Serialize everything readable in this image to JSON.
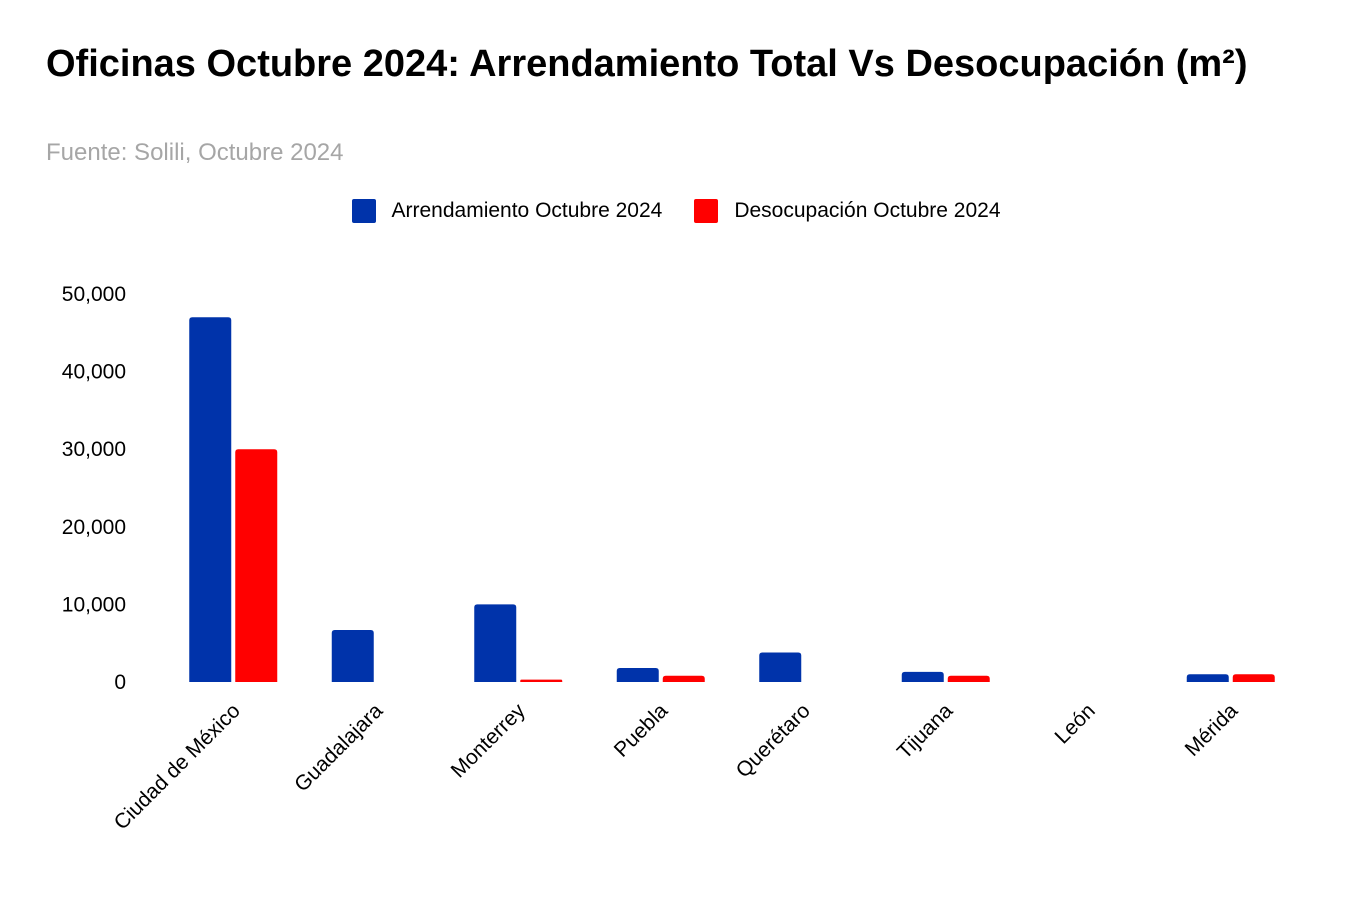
{
  "chart_data": {
    "type": "bar",
    "title": "Oficinas Octubre 2024: Arrendamiento Total Vs Desocupación (m²)",
    "subtitle": "Fuente: Solili, Octubre 2024",
    "xlabel": "",
    "ylabel": "",
    "categories": [
      "Ciudad de México",
      "Guadalajara",
      "Monterrey",
      "Puebla",
      "Querétaro",
      "Tijuana",
      "León",
      "Mérida"
    ],
    "series": [
      {
        "name": "Arrendamiento Octubre 2024",
        "color": "#0033aa",
        "values": [
          47000,
          6700,
          10000,
          1800,
          3800,
          1300,
          0,
          1000
        ]
      },
      {
        "name": "Desocupación Octubre 2024",
        "color": "#ff0000",
        "values": [
          30000,
          0,
          300,
          800,
          0,
          800,
          0,
          1000
        ]
      }
    ],
    "ylim": [
      0,
      50000
    ],
    "yticks": [
      0,
      10000,
      20000,
      30000,
      40000,
      50000
    ],
    "ytick_labels": [
      "0",
      "10,000",
      "20,000",
      "30,000",
      "40,000",
      "50,000"
    ],
    "grid": false,
    "legend_position": "top"
  }
}
